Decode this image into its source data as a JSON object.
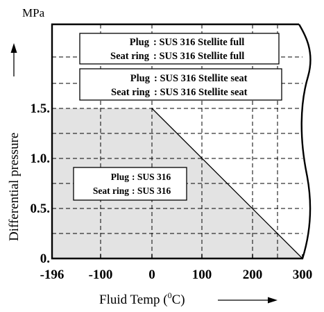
{
  "chart_data": {
    "type": "area",
    "unit_label": "MPa",
    "ylabel": "Differential pressure",
    "xlabel_prefix": "Fluid Temp (",
    "xlabel_unit_super": "0",
    "xlabel_unit": "C)",
    "x_ticks": [
      "-196",
      "-100",
      "0",
      "100",
      "200",
      "300"
    ],
    "x_tick_values": [
      -196,
      -100,
      0,
      100,
      200,
      300
    ],
    "y_ticks": [
      "0.",
      "0.5.",
      "1.0.",
      "1.5."
    ],
    "y_tick_values": [
      0,
      0.5,
      1.0,
      1.5
    ],
    "ylim": [
      0,
      2.25
    ],
    "xlim": [
      -196,
      310
    ],
    "grid": true,
    "region": {
      "x": [
        -196,
        0,
        300,
        -196
      ],
      "y": [
        1.5,
        1.5,
        0,
        0
      ]
    },
    "annotations": [
      {
        "line1_key": "Plug",
        "line1_val": ": SUS 316 Stellite full",
        "line2_key": "Seat ring",
        "line2_val": ": SUS 316 Stellite full"
      },
      {
        "line1_key": "Plug",
        "line1_val": ": SUS 316 Stellite seat",
        "line2_key": "Seat ring",
        "line2_val": ": SUS 316 Stellite seat"
      },
      {
        "line1_key": "Plug",
        "line1_val": ": SUS 316",
        "line2_key": "Seat ring",
        "line2_val": ": SUS 316"
      }
    ]
  }
}
